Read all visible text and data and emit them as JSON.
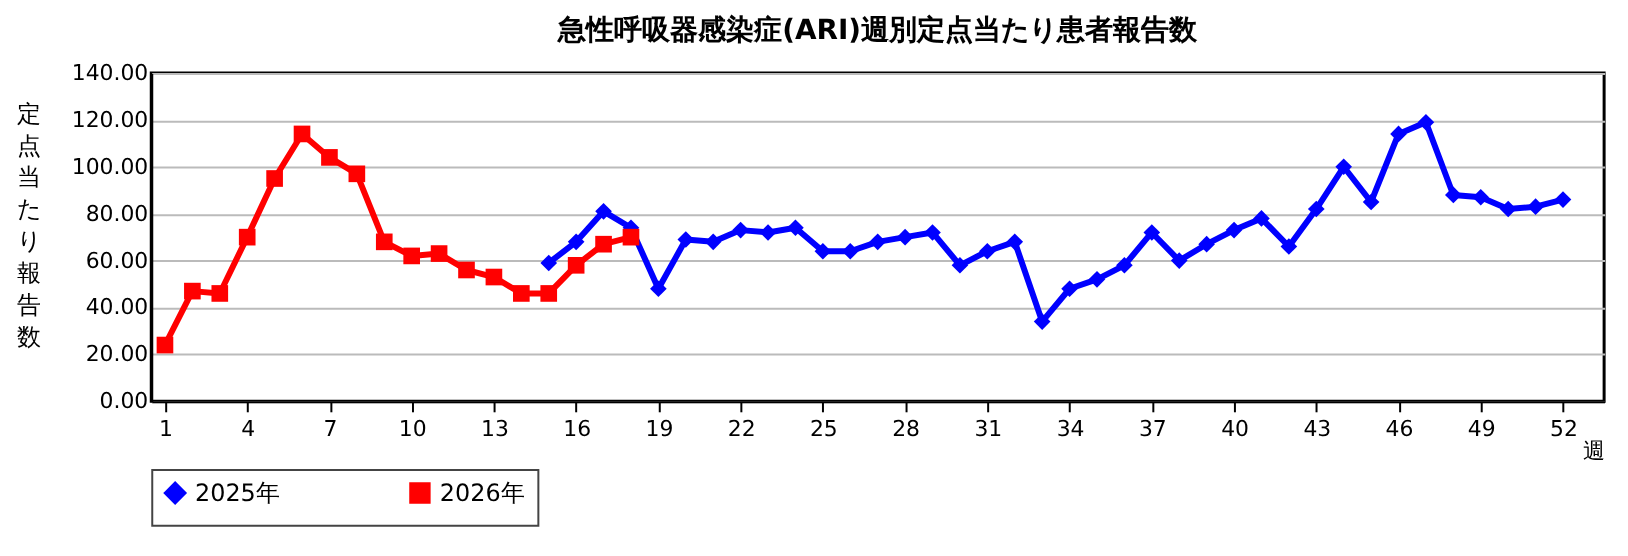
{
  "chart_data": {
    "type": "line",
    "title": "急性呼吸器感染症(ARI)週別定点当たり患者報告数",
    "xlabel": "週",
    "ylabel": "定点当たり報告数",
    "xlim": [
      0.5,
      53.5
    ],
    "xticks": [
      1,
      4,
      7,
      10,
      13,
      16,
      19,
      22,
      25,
      28,
      31,
      34,
      37,
      40,
      43,
      46,
      49,
      52
    ],
    "ylim": [
      0,
      140
    ],
    "yticks": [
      {
        "value": 0,
        "label": "0.00"
      },
      {
        "value": 20,
        "label": "20.00"
      },
      {
        "value": 40,
        "label": "40.00"
      },
      {
        "value": 60,
        "label": "60.00"
      },
      {
        "value": 80,
        "label": "80.00"
      },
      {
        "value": 100,
        "label": "100.00"
      },
      {
        "value": 120,
        "label": "120.00"
      },
      {
        "value": 140,
        "label": "140.00"
      }
    ],
    "grid": "y",
    "legend": "bottom",
    "series": [
      {
        "name": "2025年",
        "color": "#0000ff",
        "marker": "diamond",
        "x": [
          15,
          16,
          17,
          18,
          19,
          20,
          21,
          22,
          23,
          24,
          25,
          26,
          27,
          28,
          29,
          30,
          31,
          32,
          33,
          34,
          35,
          36,
          37,
          38,
          39,
          40,
          41,
          42,
          43,
          44,
          45,
          46,
          47,
          48,
          49,
          50,
          51,
          52
        ],
        "values": [
          59,
          68,
          81,
          74,
          48,
          69,
          68,
          73,
          72,
          74,
          64,
          64,
          68,
          70,
          72,
          58,
          64,
          68,
          34,
          48,
          52,
          58,
          72,
          60,
          67,
          73,
          78,
          66,
          82,
          100,
          85,
          114,
          119,
          88,
          87,
          82,
          83,
          86
        ]
      },
      {
        "name": "2026年",
        "color": "#ff0000",
        "marker": "square",
        "x": [
          1,
          2,
          3,
          4,
          5,
          6,
          7,
          8,
          9,
          10,
          11,
          12,
          13,
          14,
          15,
          16,
          17,
          18
        ],
        "values": [
          24,
          47,
          46,
          70,
          95,
          114,
          104,
          97,
          68,
          62,
          63,
          56,
          53,
          46,
          46,
          58,
          67,
          70
        ]
      }
    ]
  }
}
